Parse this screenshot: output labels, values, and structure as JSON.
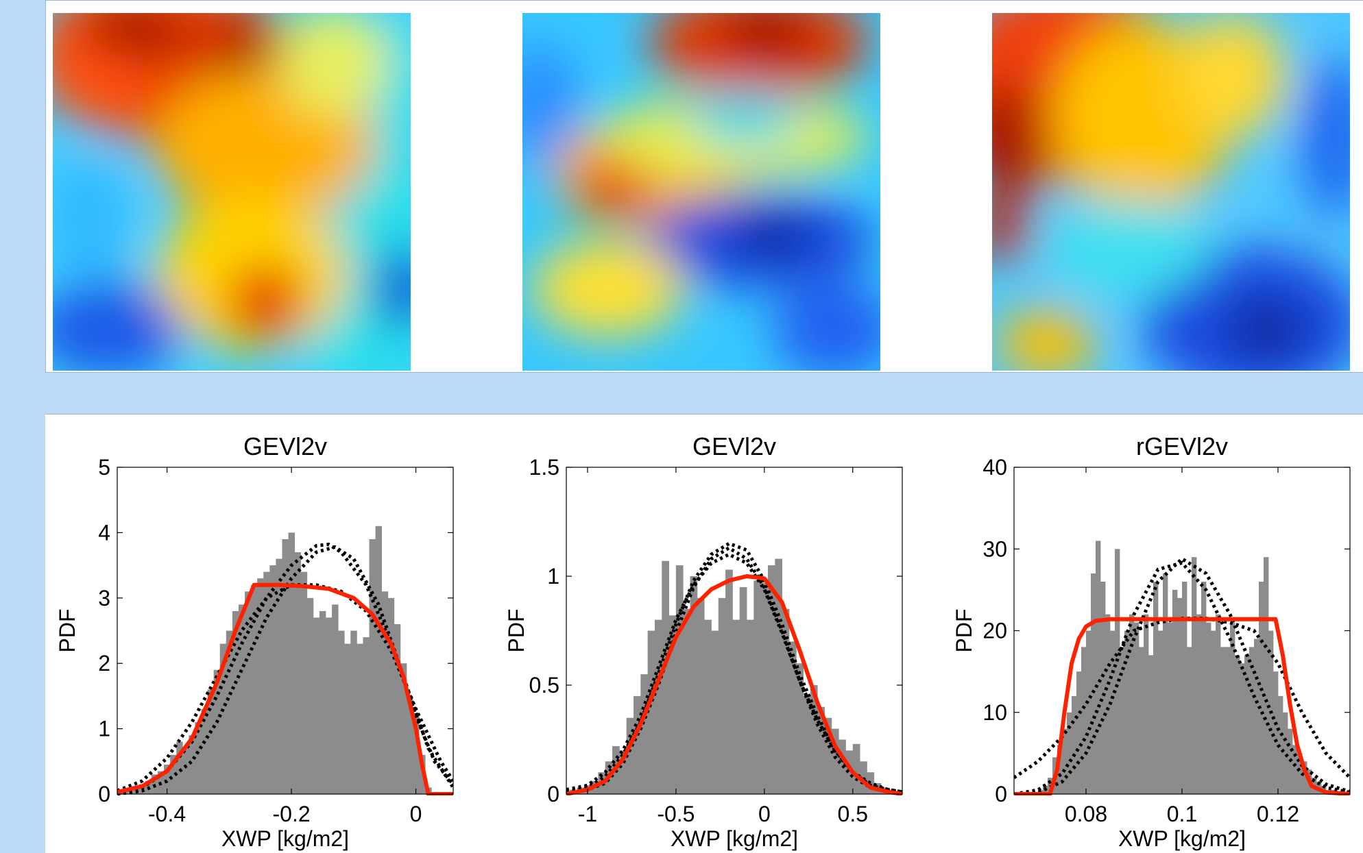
{
  "colors": {
    "background": "#bcd9f7",
    "histogram_bar": "#8c8c8c",
    "fit_line": "#ff2200",
    "dotted_lines": "#000000"
  },
  "maps": [
    {
      "name": "field-map-1"
    },
    {
      "name": "field-map-2"
    },
    {
      "name": "field-map-3"
    }
  ],
  "chart_data": [
    {
      "type": "bar",
      "title": "GEVl2v",
      "xlabel": "XWP [kg/m2]",
      "ylabel": "PDF",
      "xlim": [
        -0.48,
        0.06
      ],
      "ylim": [
        0,
        5
      ],
      "xticks": [
        -0.4,
        -0.2,
        0
      ],
      "xtick_labels": [
        "-0.4",
        "-0.2",
        "0"
      ],
      "yticks": [
        0,
        1,
        2,
        3,
        4,
        5
      ],
      "ytick_labels": [
        "0",
        "1",
        "2",
        "3",
        "4",
        "5"
      ],
      "histogram": {
        "x": [
          -0.47,
          -0.46,
          -0.45,
          -0.44,
          -0.43,
          -0.42,
          -0.41,
          -0.4,
          -0.39,
          -0.38,
          -0.37,
          -0.36,
          -0.35,
          -0.34,
          -0.33,
          -0.32,
          -0.31,
          -0.3,
          -0.29,
          -0.28,
          -0.27,
          -0.26,
          -0.25,
          -0.24,
          -0.23,
          -0.22,
          -0.21,
          -0.2,
          -0.19,
          -0.18,
          -0.17,
          -0.16,
          -0.15,
          -0.14,
          -0.13,
          -0.12,
          -0.11,
          -0.1,
          -0.09,
          -0.08,
          -0.07,
          -0.06,
          -0.05,
          -0.04,
          -0.03,
          -0.02,
          -0.01,
          0.0,
          0.01,
          0.02
        ],
        "values": [
          0.05,
          0.08,
          0.12,
          0.15,
          0.2,
          0.3,
          0.35,
          0.45,
          0.6,
          0.8,
          0.7,
          0.9,
          1.1,
          1.3,
          1.6,
          1.9,
          2.3,
          2.5,
          2.8,
          2.9,
          3.1,
          3.2,
          3.3,
          3.4,
          3.5,
          3.6,
          3.9,
          4.0,
          3.7,
          3.4,
          3.0,
          2.7,
          2.8,
          2.7,
          2.9,
          2.5,
          2.3,
          2.5,
          2.3,
          2.4,
          3.9,
          4.1,
          3.1,
          3.0,
          2.6,
          2.0,
          1.5,
          1.2,
          0.6,
          0.1
        ]
      },
      "series": [
        {
          "style": "solid-red",
          "x": [
            -0.48,
            -0.44,
            -0.4,
            -0.36,
            -0.32,
            -0.29,
            -0.26,
            -0.22,
            -0.18,
            -0.14,
            -0.1,
            -0.07,
            -0.04,
            -0.02,
            0.0,
            0.01,
            0.02,
            0.06
          ],
          "y": [
            0.03,
            0.12,
            0.35,
            0.85,
            1.7,
            2.5,
            3.2,
            3.2,
            3.18,
            3.14,
            3.0,
            2.75,
            2.3,
            1.8,
            1.0,
            0.45,
            0.0,
            0.0
          ]
        },
        {
          "style": "dotted-black",
          "x": [
            -0.48,
            -0.44,
            -0.4,
            -0.36,
            -0.32,
            -0.28,
            -0.24,
            -0.2,
            -0.16,
            -0.14,
            -0.12,
            -0.08,
            -0.04,
            0.0,
            0.03,
            0.06
          ],
          "y": [
            0.0,
            0.1,
            0.35,
            0.8,
            1.5,
            2.3,
            3.0,
            3.5,
            3.8,
            3.82,
            3.7,
            3.2,
            2.3,
            1.2,
            0.5,
            0.15
          ]
        },
        {
          "style": "dotted-black",
          "x": [
            -0.48,
            -0.44,
            -0.4,
            -0.36,
            -0.32,
            -0.28,
            -0.24,
            -0.2,
            -0.16,
            -0.13,
            -0.1,
            -0.06,
            -0.02,
            0.02,
            0.06
          ],
          "y": [
            0.0,
            0.05,
            0.2,
            0.5,
            1.1,
            1.9,
            2.7,
            3.3,
            3.7,
            3.78,
            3.6,
            2.9,
            1.8,
            0.7,
            0.1
          ]
        },
        {
          "style": "dotted-black",
          "x": [
            -0.48,
            -0.44,
            -0.4,
            -0.36,
            -0.32,
            -0.28,
            -0.24,
            -0.2,
            -0.16,
            -0.12,
            -0.08,
            -0.04,
            0.0,
            0.04,
            0.06
          ],
          "y": [
            0.05,
            0.2,
            0.55,
            1.1,
            1.8,
            2.5,
            3.0,
            3.2,
            3.2,
            3.1,
            2.8,
            2.2,
            1.3,
            0.5,
            0.2
          ]
        }
      ]
    },
    {
      "type": "bar",
      "title": "GEVl2v",
      "xlabel": "XWP [kg/m2]",
      "ylabel": "PDF",
      "xlim": [
        -1.12,
        0.78
      ],
      "ylim": [
        0,
        1.5
      ],
      "xticks": [
        -1,
        -0.5,
        0,
        0.5
      ],
      "xtick_labels": [
        "-1",
        "-0.5",
        "0",
        "0.5"
      ],
      "yticks": [
        0,
        0.5,
        1,
        1.5
      ],
      "ytick_labels": [
        "0",
        "0.5",
        "1",
        "1.5"
      ],
      "histogram": {
        "x": [
          -1.08,
          -1.04,
          -1.0,
          -0.96,
          -0.92,
          -0.88,
          -0.84,
          -0.8,
          -0.76,
          -0.72,
          -0.68,
          -0.64,
          -0.6,
          -0.56,
          -0.52,
          -0.48,
          -0.44,
          -0.4,
          -0.36,
          -0.32,
          -0.28,
          -0.24,
          -0.2,
          -0.16,
          -0.12,
          -0.08,
          -0.04,
          0.0,
          0.04,
          0.08,
          0.12,
          0.16,
          0.2,
          0.24,
          0.28,
          0.32,
          0.36,
          0.4,
          0.44,
          0.48,
          0.52,
          0.56,
          0.6,
          0.64,
          0.68,
          0.72
        ],
        "values": [
          0.02,
          0.03,
          0.04,
          0.06,
          0.1,
          0.15,
          0.22,
          0.2,
          0.35,
          0.45,
          0.55,
          0.75,
          0.8,
          1.07,
          0.82,
          1.05,
          0.85,
          1.0,
          0.9,
          0.8,
          0.75,
          0.9,
          1.03,
          0.8,
          0.95,
          0.8,
          0.98,
          0.97,
          1.05,
          1.08,
          0.85,
          0.7,
          0.6,
          0.45,
          0.5,
          0.4,
          0.35,
          0.3,
          0.25,
          0.2,
          0.23,
          0.15,
          0.1,
          0.05,
          0.03,
          0.02
        ]
      },
      "series": [
        {
          "style": "solid-red",
          "x": [
            -1.12,
            -1.0,
            -0.9,
            -0.8,
            -0.7,
            -0.6,
            -0.5,
            -0.4,
            -0.3,
            -0.2,
            -0.1,
            0.0,
            0.1,
            0.2,
            0.3,
            0.4,
            0.5,
            0.6,
            0.7,
            0.78
          ],
          "y": [
            0.0,
            0.02,
            0.06,
            0.16,
            0.32,
            0.52,
            0.72,
            0.86,
            0.94,
            0.98,
            1.0,
            0.99,
            0.88,
            0.66,
            0.42,
            0.22,
            0.1,
            0.03,
            0.01,
            0.0
          ]
        },
        {
          "style": "dotted-black",
          "x": [
            -1.12,
            -1.0,
            -0.9,
            -0.8,
            -0.7,
            -0.6,
            -0.5,
            -0.4,
            -0.3,
            -0.2,
            -0.1,
            0.0,
            0.1,
            0.2,
            0.3,
            0.4,
            0.5,
            0.6,
            0.7,
            0.78
          ],
          "y": [
            0.01,
            0.03,
            0.08,
            0.18,
            0.33,
            0.55,
            0.78,
            0.98,
            1.1,
            1.15,
            1.12,
            0.98,
            0.78,
            0.55,
            0.36,
            0.2,
            0.1,
            0.04,
            0.02,
            0.01
          ]
        },
        {
          "style": "dotted-black",
          "x": [
            -1.12,
            -1.0,
            -0.9,
            -0.8,
            -0.7,
            -0.6,
            -0.5,
            -0.4,
            -0.3,
            -0.2,
            -0.1,
            0.0,
            0.1,
            0.2,
            0.3,
            0.4,
            0.5,
            0.6,
            0.7,
            0.78
          ],
          "y": [
            0.0,
            0.02,
            0.05,
            0.14,
            0.3,
            0.5,
            0.74,
            0.95,
            1.08,
            1.13,
            1.08,
            0.95,
            0.75,
            0.52,
            0.32,
            0.17,
            0.08,
            0.03,
            0.01,
            0.0
          ]
        },
        {
          "style": "dotted-black",
          "x": [
            -1.12,
            -1.0,
            -0.9,
            -0.8,
            -0.7,
            -0.6,
            -0.5,
            -0.4,
            -0.3,
            -0.2,
            -0.1,
            0.0,
            0.1,
            0.2,
            0.3,
            0.4,
            0.5,
            0.6,
            0.7,
            0.78
          ],
          "y": [
            0.02,
            0.04,
            0.1,
            0.2,
            0.36,
            0.58,
            0.8,
            0.96,
            1.06,
            1.1,
            1.06,
            0.94,
            0.74,
            0.52,
            0.34,
            0.2,
            0.1,
            0.05,
            0.02,
            0.01
          ]
        }
      ]
    },
    {
      "type": "bar",
      "title": "rGEVl2v",
      "xlabel": "XWP [kg/m2]",
      "ylabel": "PDF",
      "xlim": [
        0.065,
        0.135
      ],
      "ylim": [
        0,
        40
      ],
      "xticks": [
        0.08,
        0.1,
        0.12
      ],
      "xtick_labels": [
        "0.08",
        "0.1",
        "0.12"
      ],
      "yticks": [
        0,
        10,
        20,
        30,
        40
      ],
      "ytick_labels": [
        "0",
        "10",
        "20",
        "30",
        "40"
      ],
      "histogram": {
        "x": [
          0.0705,
          0.0715,
          0.0725,
          0.0735,
          0.0745,
          0.0755,
          0.0765,
          0.0775,
          0.0785,
          0.0795,
          0.0805,
          0.0815,
          0.0825,
          0.0835,
          0.0845,
          0.0855,
          0.0865,
          0.0875,
          0.0885,
          0.0895,
          0.0905,
          0.0915,
          0.0925,
          0.0935,
          0.0945,
          0.0955,
          0.0965,
          0.0975,
          0.0985,
          0.0995,
          0.1005,
          0.1015,
          0.1025,
          0.1035,
          0.1045,
          0.1055,
          0.1065,
          0.1075,
          0.1085,
          0.1095,
          0.1105,
          0.1115,
          0.1125,
          0.1135,
          0.1145,
          0.1155,
          0.1165,
          0.1175,
          0.1185,
          0.1195,
          0.1205,
          0.1215,
          0.1225,
          0.1235,
          0.1245,
          0.1255,
          0.1265,
          0.1275,
          0.1285,
          0.1295,
          0.1305,
          0.1315,
          0.1325,
          0.1335
        ],
        "values": [
          0.5,
          1.0,
          2.0,
          4.5,
          6.0,
          8.0,
          10.0,
          12.0,
          15.0,
          18.0,
          20.0,
          27.0,
          31.0,
          26.0,
          22.0,
          20.0,
          30.0,
          18.0,
          20.0,
          22.0,
          21.0,
          18.0,
          22.0,
          17.0,
          26.0,
          20.0,
          27.0,
          21.0,
          25.0,
          24.0,
          26.0,
          18.0,
          29.0,
          22.0,
          26.0,
          21.0,
          20.0,
          22.0,
          18.0,
          18.0,
          21.0,
          17.0,
          16.0,
          17.0,
          18.0,
          19.0,
          26.0,
          29.0,
          20.0,
          15.0,
          12.0,
          10.0,
          8.0,
          6.0,
          5.0,
          4.0,
          3.0,
          2.0,
          1.5,
          1.0,
          0.5,
          0.5,
          0.3,
          0.2
        ]
      },
      "series": [
        {
          "style": "solid-red",
          "x": [
            0.065,
            0.069,
            0.0725,
            0.074,
            0.0755,
            0.077,
            0.0785,
            0.08,
            0.082,
            0.085,
            0.09,
            0.1,
            0.11,
            0.115,
            0.1195,
            0.121,
            0.1225,
            0.124,
            0.1255,
            0.127,
            0.13,
            0.135
          ],
          "y": [
            0.0,
            0.0,
            0.0,
            3.0,
            10.0,
            16.0,
            19.0,
            20.5,
            21.2,
            21.4,
            21.4,
            21.4,
            21.4,
            21.4,
            21.4,
            17.0,
            11.0,
            6.0,
            3.0,
            1.0,
            0.2,
            0.0
          ]
        },
        {
          "style": "dotted-black",
          "x": [
            0.065,
            0.07,
            0.075,
            0.08,
            0.085,
            0.09,
            0.095,
            0.1,
            0.105,
            0.11,
            0.115,
            0.12,
            0.125,
            0.13,
            0.135
          ],
          "y": [
            0.0,
            0.2,
            1.5,
            5.0,
            11.0,
            19.0,
            26.0,
            28.8,
            27.0,
            22.0,
            15.0,
            8.0,
            3.5,
            1.2,
            0.3
          ]
        },
        {
          "style": "dotted-black",
          "x": [
            0.065,
            0.07,
            0.075,
            0.08,
            0.085,
            0.09,
            0.095,
            0.1,
            0.105,
            0.11,
            0.115,
            0.12,
            0.125,
            0.13,
            0.135
          ],
          "y": [
            0.0,
            0.5,
            2.5,
            7.0,
            14.0,
            22.0,
            27.5,
            28.3,
            25.0,
            19.0,
            12.0,
            6.0,
            2.5,
            0.8,
            0.2
          ]
        },
        {
          "style": "dotted-black",
          "x": [
            0.065,
            0.07,
            0.075,
            0.08,
            0.085,
            0.09,
            0.095,
            0.1,
            0.105,
            0.11,
            0.115,
            0.12,
            0.125,
            0.13,
            0.135
          ],
          "y": [
            2.0,
            4.0,
            7.0,
            11.0,
            16.0,
            20.0,
            21.0,
            21.5,
            21.5,
            21.0,
            20.0,
            16.0,
            10.0,
            5.0,
            2.0
          ]
        }
      ]
    }
  ]
}
